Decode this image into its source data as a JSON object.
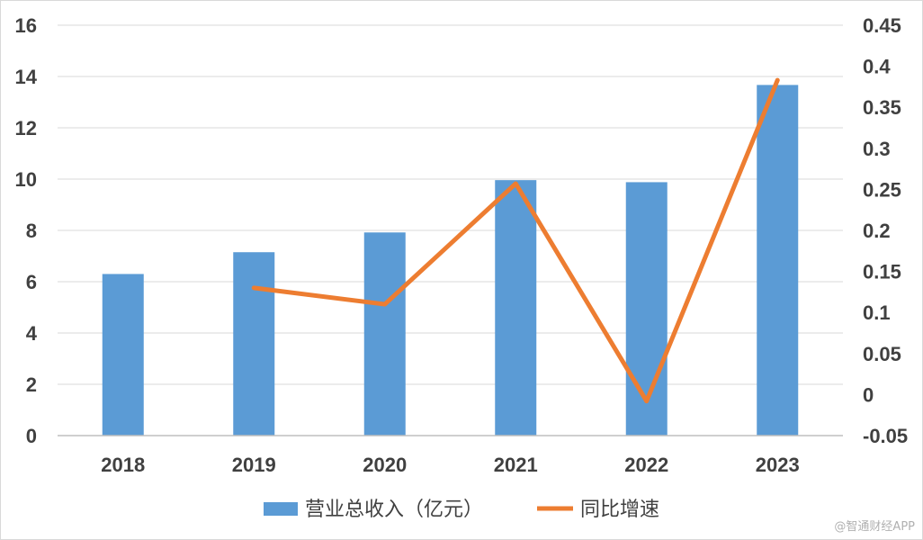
{
  "chart_data": {
    "type": "bar",
    "categories": [
      "2018",
      "2019",
      "2020",
      "2021",
      "2022",
      "2023"
    ],
    "series": [
      {
        "name": "营业总收入（亿元）",
        "type": "bar",
        "axis": "left",
        "color": "#5B9BD5",
        "values": [
          6.3,
          7.15,
          7.92,
          9.96,
          9.88,
          13.67
        ]
      },
      {
        "name": "同比增速",
        "type": "line",
        "axis": "right",
        "color": "#ED7D31",
        "values": [
          null,
          0.13,
          0.11,
          0.257,
          -0.008,
          0.383
        ]
      }
    ],
    "y_left": {
      "ylim": [
        0,
        16
      ],
      "ticks": [
        "0",
        "2",
        "4",
        "6",
        "8",
        "10",
        "12",
        "14",
        "16"
      ]
    },
    "y_right": {
      "ylim": [
        -0.05,
        0.45
      ],
      "ticks": [
        "-0.05",
        "0",
        "0.05",
        "0.1",
        "0.15",
        "0.2",
        "0.25",
        "0.3",
        "0.35",
        "0.4",
        "0.45"
      ]
    },
    "grid": true,
    "legend": "bottom"
  },
  "watermark": "@智通财经APP"
}
